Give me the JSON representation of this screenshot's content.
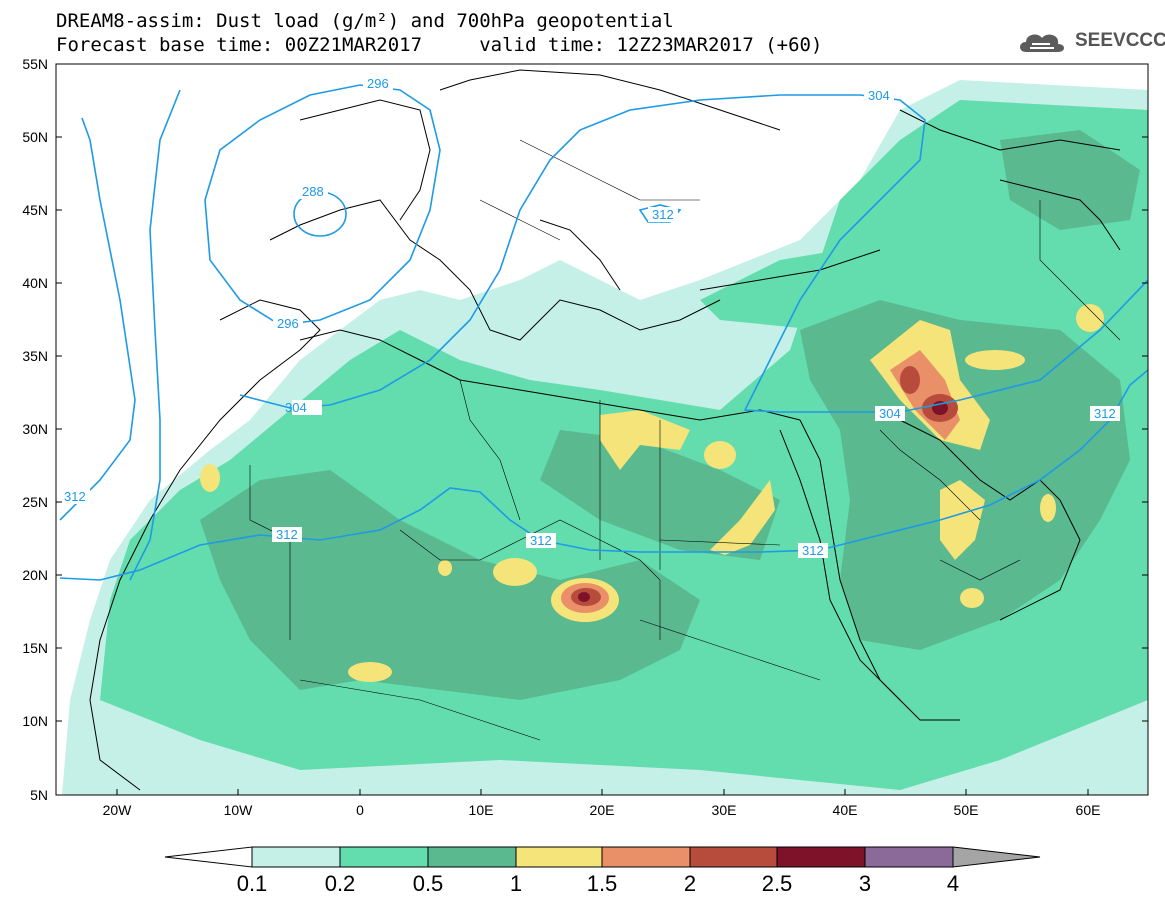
{
  "title_line1": "DREAM8-assim: Dust load (g/m²) and 700hPa geopotential",
  "title_line2": "Forecast base time: 00Z21MAR2017     valid time: 12Z23MAR2017 (+60)",
  "logo_text": "SEEVCCC",
  "axes": {
    "lat_labels": [
      "55N",
      "50N",
      "45N",
      "40N",
      "35N",
      "30N",
      "25N",
      "20N",
      "15N",
      "10N",
      "5N"
    ],
    "lon_labels": [
      "20W",
      "10W",
      "0",
      "10E",
      "20E",
      "30E",
      "40E",
      "50E",
      "60E"
    ]
  },
  "contours": {
    "labels": [
      "296",
      "304",
      "288",
      "312",
      "296",
      "304",
      "304",
      "312",
      "312",
      "312",
      "312",
      "312"
    ]
  },
  "colorbar": {
    "labels": [
      "0.1",
      "0.2",
      "0.5",
      "1",
      "1.5",
      "2",
      "2.5",
      "3",
      "4"
    ],
    "colors": [
      "#c5f0e7",
      "#63dcae",
      "#5ab98f",
      "#f4e47a",
      "#e99068",
      "#b74c3d",
      "#7d1229",
      "#8b6a9a",
      "#a5a5a5"
    ]
  },
  "colors": {
    "land_outline": "#000000",
    "contour_line": "#1e9ae6",
    "dust_light": "#c5f0e7",
    "dust_02": "#63dcae",
    "dust_05": "#5ab98f",
    "dust_1": "#f4e47a",
    "dust_15": "#e99068",
    "dust_2": "#b74c3d",
    "dust_25": "#7d1229"
  }
}
